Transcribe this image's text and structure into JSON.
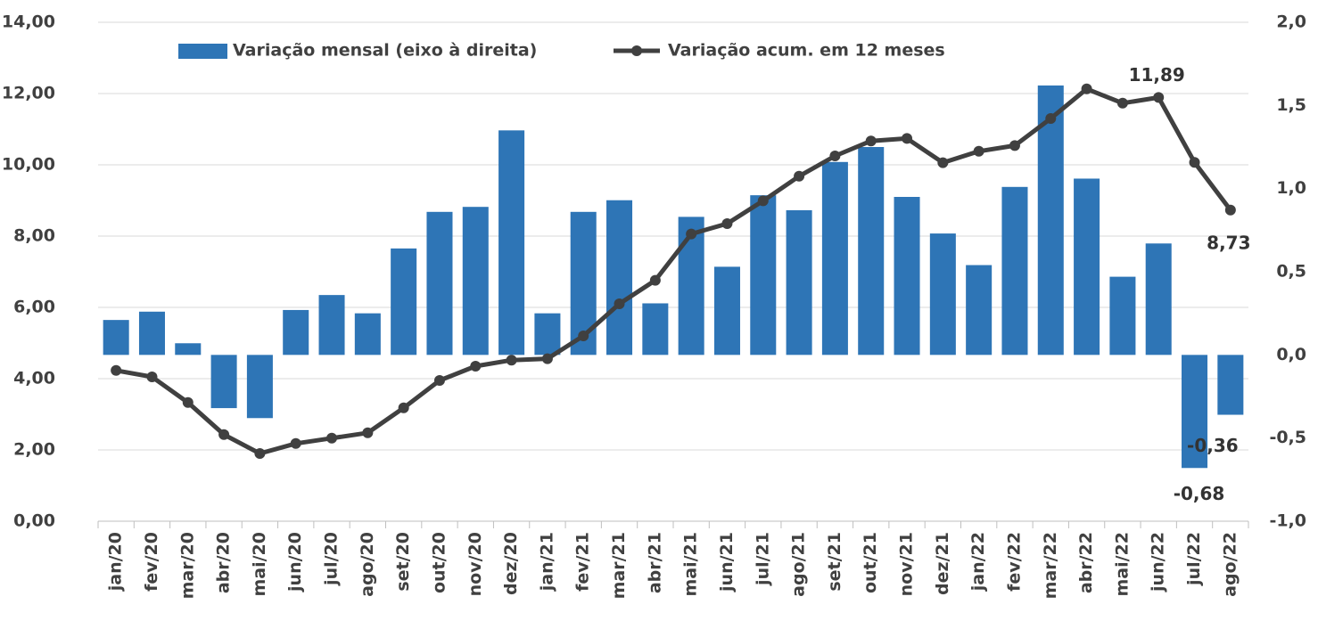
{
  "chart_data": {
    "type": "combo",
    "categories": [
      "jan/20",
      "fev/20",
      "mar/20",
      "abr/20",
      "mai/20",
      "jun/20",
      "jul/20",
      "ago/20",
      "set/20",
      "out/20",
      "nov/20",
      "dez/20",
      "jan/21",
      "fev/21",
      "mar/21",
      "abr/21",
      "mai/21",
      "jun/21",
      "jul/21",
      "ago/21",
      "set/21",
      "out/21",
      "nov/21",
      "dez/21",
      "jan/22",
      "fev/22",
      "mar/22",
      "abr/22",
      "mai/22",
      "jun/22",
      "jul/22",
      "ago/22"
    ],
    "series": [
      {
        "name": "Variação mensal (eixo à direita)",
        "type": "bar",
        "axis": "y2",
        "color": "#2e75b6",
        "values": [
          0.21,
          0.26,
          0.07,
          -0.32,
          -0.38,
          0.27,
          0.36,
          0.25,
          0.64,
          0.86,
          0.89,
          1.35,
          0.25,
          0.86,
          0.93,
          0.31,
          0.83,
          0.53,
          0.96,
          0.87,
          1.16,
          1.25,
          0.95,
          0.73,
          0.54,
          1.01,
          1.62,
          1.06,
          0.47,
          0.67,
          -0.68,
          -0.36
        ],
        "value_labels": [
          null,
          null,
          null,
          null,
          null,
          null,
          null,
          null,
          null,
          null,
          null,
          null,
          null,
          null,
          null,
          null,
          null,
          null,
          null,
          null,
          null,
          null,
          null,
          null,
          null,
          null,
          null,
          null,
          null,
          null,
          "-0,68",
          "-0,36"
        ]
      },
      {
        "name": "Variação acum. em 12 meses",
        "type": "line",
        "color": "#404040",
        "values": [
          4.23,
          4.05,
          3.33,
          2.43,
          1.9,
          2.18,
          2.33,
          2.48,
          3.18,
          3.95,
          4.35,
          4.52,
          4.56,
          5.2,
          6.1,
          6.76,
          8.06,
          8.35,
          8.99,
          9.68,
          10.25,
          10.67,
          10.74,
          10.06,
          10.38,
          10.54,
          11.3,
          12.13,
          11.73,
          11.89,
          10.07,
          8.73
        ],
        "value_labels": [
          null,
          null,
          null,
          null,
          null,
          null,
          null,
          null,
          null,
          null,
          null,
          null,
          null,
          null,
          null,
          null,
          null,
          null,
          null,
          null,
          null,
          null,
          null,
          null,
          null,
          null,
          null,
          null,
          null,
          "11,89",
          null,
          "8,73"
        ]
      }
    ],
    "ylim": [
      0,
      14
    ],
    "yticks": [
      {
        "value": 0,
        "label": "0,00"
      },
      {
        "value": 2,
        "label": "2,00"
      },
      {
        "value": 4,
        "label": "4,00"
      },
      {
        "value": 6,
        "label": "6,00"
      },
      {
        "value": 8,
        "label": "8,00"
      },
      {
        "value": 10,
        "label": "10,00"
      },
      {
        "value": 12,
        "label": "12,00"
      },
      {
        "value": 14,
        "label": "14,00"
      }
    ],
    "y2lim": [
      -1,
      2
    ],
    "y2ticks": [
      {
        "value": -1,
        "label": "-1,0"
      },
      {
        "value": -0.5,
        "label": "-0,5"
      },
      {
        "value": 0,
        "label": "0,0"
      },
      {
        "value": 0.5,
        "label": "0,5"
      },
      {
        "value": 1,
        "label": "1,0"
      },
      {
        "value": 1.5,
        "label": "1,5"
      },
      {
        "value": 2,
        "label": "2,0"
      }
    ],
    "grid": true,
    "legend": "top"
  }
}
